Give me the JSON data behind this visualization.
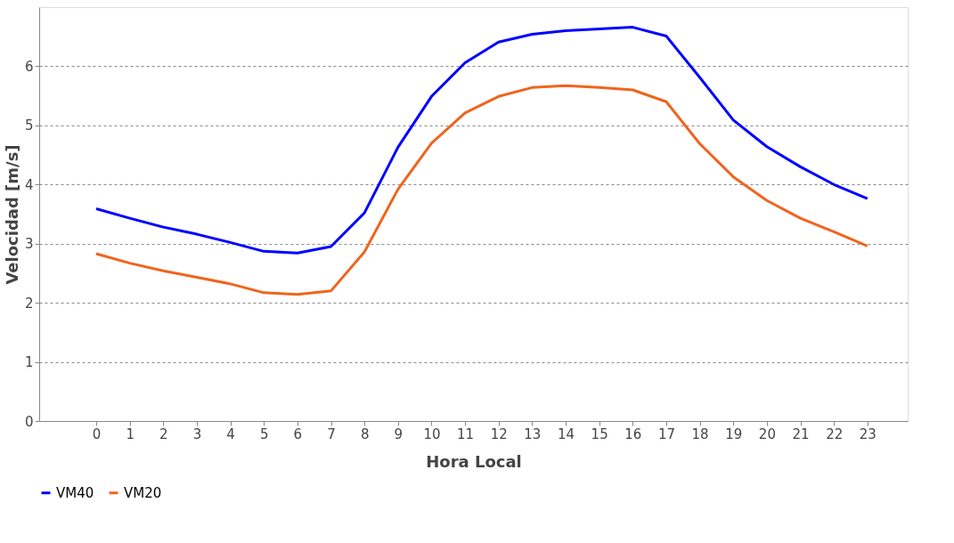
{
  "chart_data": {
    "type": "line",
    "xlabel": "Hora Local",
    "ylabel": "Velocidad [m/s]",
    "x": [
      0,
      1,
      2,
      3,
      4,
      5,
      6,
      7,
      8,
      9,
      10,
      11,
      12,
      13,
      14,
      15,
      16,
      17,
      18,
      19,
      20,
      21,
      22,
      23
    ],
    "xlim": [
      -1.7,
      24.2
    ],
    "xticks": [
      0,
      1,
      2,
      3,
      4,
      5,
      6,
      7,
      8,
      9,
      10,
      11,
      12,
      13,
      14,
      15,
      16,
      17,
      18,
      19,
      20,
      21,
      22,
      23
    ],
    "ylim": [
      0,
      7
    ],
    "yticks": [
      0,
      1,
      2,
      3,
      4,
      5,
      6
    ],
    "series": [
      {
        "name": "VM40",
        "color": "#0000ff",
        "values": [
          3.59,
          3.43,
          3.28,
          3.16,
          3.02,
          2.87,
          2.84,
          2.95,
          3.52,
          4.63,
          5.49,
          6.06,
          6.41,
          6.54,
          6.6,
          6.63,
          6.66,
          6.51,
          5.81,
          5.09,
          4.64,
          4.3,
          4.0,
          3.76
        ]
      },
      {
        "name": "VM20",
        "color": "#f0641e",
        "values": [
          2.83,
          2.67,
          2.54,
          2.43,
          2.32,
          2.17,
          2.14,
          2.2,
          2.86,
          3.92,
          4.7,
          5.21,
          5.49,
          5.64,
          5.67,
          5.64,
          5.6,
          5.4,
          4.69,
          4.13,
          3.73,
          3.43,
          3.2,
          2.96
        ]
      }
    ],
    "grid": "y",
    "legend": "bottom",
    "line_style": "solid",
    "marker": "none"
  }
}
